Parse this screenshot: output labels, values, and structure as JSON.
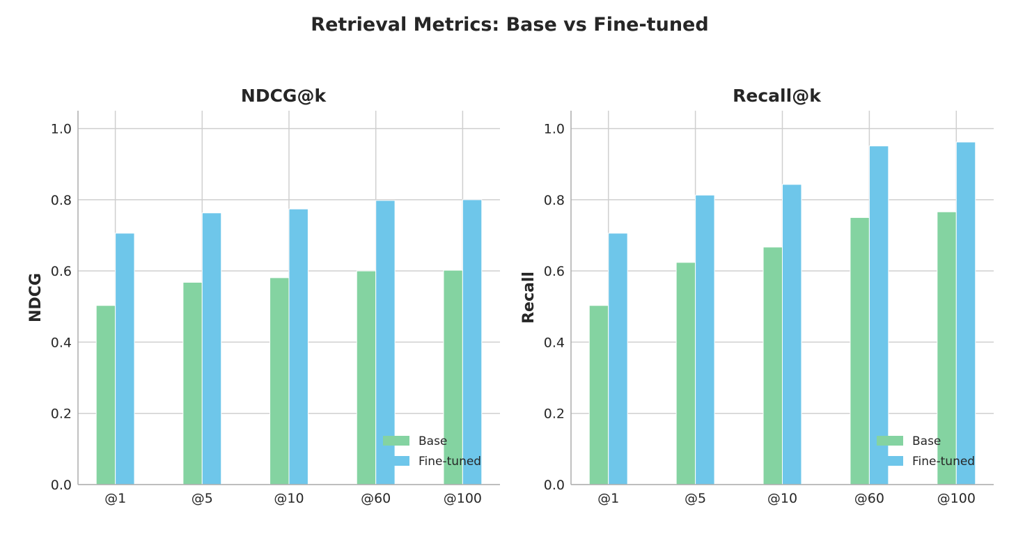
{
  "title": "Retrieval Metrics: Base vs Fine-tuned",
  "colors": {
    "base": "#84d3a1",
    "finetuned": "#6ec6ea",
    "grid": "#cfcfcf",
    "axis": "#b0b0b0",
    "text": "#262626"
  },
  "chart_data": [
    {
      "type": "bar",
      "title": "NDCG@k",
      "xlabel": "",
      "ylabel": "NDCG",
      "categories": [
        "@1",
        "@5",
        "@10",
        "@60",
        "@100"
      ],
      "series": [
        {
          "name": "Base",
          "values": [
            0.503,
            0.568,
            0.581,
            0.6,
            0.602
          ]
        },
        {
          "name": "Fine-tuned",
          "values": [
            0.706,
            0.763,
            0.774,
            0.798,
            0.8
          ]
        }
      ],
      "ylim": [
        0,
        1.05
      ],
      "yticks": [
        "0.0",
        "0.2",
        "0.4",
        "0.6",
        "0.8",
        "1.0"
      ],
      "grid": true,
      "legend": "lower right"
    },
    {
      "type": "bar",
      "title": "Recall@k",
      "xlabel": "",
      "ylabel": "Recall",
      "categories": [
        "@1",
        "@5",
        "@10",
        "@60",
        "@100"
      ],
      "series": [
        {
          "name": "Base",
          "values": [
            0.503,
            0.624,
            0.667,
            0.75,
            0.766
          ]
        },
        {
          "name": "Fine-tuned",
          "values": [
            0.706,
            0.813,
            0.843,
            0.951,
            0.962
          ]
        }
      ],
      "ylim": [
        0,
        1.05
      ],
      "yticks": [
        "0.0",
        "0.2",
        "0.4",
        "0.6",
        "0.8",
        "1.0"
      ],
      "grid": true,
      "legend": "lower right"
    }
  ]
}
